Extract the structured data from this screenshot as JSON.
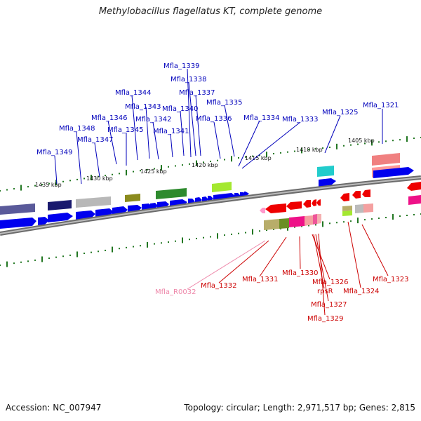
{
  "title": "Methylobacillus flagellatus KT, complete genome",
  "footer": {
    "accession": "Accession: NC_007947",
    "summary": "Topology: circular; Length: 2,971,517 bp; Genes: 2,815"
  },
  "colors": {
    "forward_label": "#0000bb",
    "reverse_label": "#cc0000",
    "rna_label": "#ee88aa",
    "backbone": "#8a8a8a",
    "tick": "#227722"
  },
  "ruler": [
    {
      "label": "1435 kbp"
    },
    {
      "label": "1430 kbp"
    },
    {
      "label": "1425 kbp"
    },
    {
      "label": "1420 kbp"
    },
    {
      "label": "1415 kbp"
    },
    {
      "label": "1410 kbp"
    },
    {
      "label": "1405 kbp"
    }
  ],
  "forward_labels": [
    {
      "text": "Mfla_1339"
    },
    {
      "text": "Mfla_1338"
    },
    {
      "text": "Mfla_1337"
    },
    {
      "text": "Mfla_1344"
    },
    {
      "text": "Mfla_1335"
    },
    {
      "text": "Mfla_1343"
    },
    {
      "text": "Mfla_1340"
    },
    {
      "text": "Mfla_1321"
    },
    {
      "text": "Mfla_1346"
    },
    {
      "text": "Mfla_1342"
    },
    {
      "text": "Mfla_1336"
    },
    {
      "text": "Mfla_1334"
    },
    {
      "text": "Mfla_1325"
    },
    {
      "text": "Mfla_1333"
    },
    {
      "text": "Mfla_1348"
    },
    {
      "text": "Mfla_1345"
    },
    {
      "text": "Mfla_1341"
    },
    {
      "text": "Mfla_1347"
    },
    {
      "text": "Mfla_1349"
    }
  ],
  "reverse_labels": [
    {
      "text": "Mfla_R0032"
    },
    {
      "text": "Mfla_1332"
    },
    {
      "text": "Mfla_1331"
    },
    {
      "text": "Mfla_1330"
    },
    {
      "text": "Mfla_1326"
    },
    {
      "text": "rpsR"
    },
    {
      "text": "Mfla_1327"
    },
    {
      "text": "Mfla_1329"
    },
    {
      "text": "Mfla_1324"
    },
    {
      "text": "Mfla_1323"
    }
  ]
}
